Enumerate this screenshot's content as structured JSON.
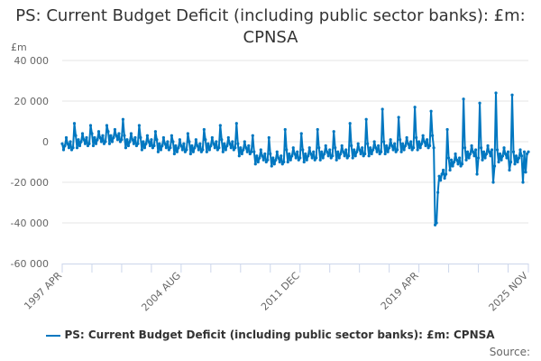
{
  "title": "PS: Current Budget Deficit (including public sector banks): £m: CPNSA",
  "source_label": "Source:",
  "colors": {
    "series": "#0077c0",
    "grid": "#e6e6e6",
    "axis": "#ccd6eb"
  },
  "chart_data": {
    "type": "line",
    "title": "PS: Current Budget Deficit (including public sector banks): £m: CPNSA",
    "ylabel": "£m",
    "ylim": [
      -60000,
      40000
    ],
    "yticks": [
      40000,
      20000,
      0,
      -20000,
      -40000,
      -60000
    ],
    "ytick_labels": [
      "40 000",
      "20 000",
      "0",
      "-20 000",
      "-40 000",
      "-60 000"
    ],
    "x_start": "1997 APR",
    "x_end": "2025 NOV",
    "x_frequency": "monthly",
    "xtick_labels": [
      "1997 APR",
      "2004 AUG",
      "2011 DEC",
      "2019 APR",
      "2025 NOV"
    ],
    "grid": true,
    "legend_position": "bottom",
    "series": [
      {
        "name": "PS: Current Budget Deficit (including public sector banks): £m: CPNSA",
        "values": [
          -1000,
          -4000,
          -2000,
          2000,
          -1000,
          -3000,
          0,
          -4000,
          -3000,
          9000,
          3000,
          -3000,
          1000,
          -2000,
          0,
          4000,
          1000,
          -1000,
          2000,
          -2000,
          -1000,
          8000,
          4000,
          -2000,
          2000,
          -1000,
          1000,
          5000,
          2000,
          0,
          3000,
          -1000,
          0,
          8000,
          5000,
          -1000,
          3000,
          0,
          2000,
          6000,
          3000,
          1000,
          4000,
          0,
          1000,
          11000,
          3000,
          -3000,
          1000,
          -2000,
          0,
          4000,
          1000,
          -1000,
          2000,
          -2000,
          -1000,
          8000,
          2000,
          -4000,
          0,
          -3000,
          -1000,
          3000,
          0,
          -2000,
          1000,
          -3000,
          -2000,
          5000,
          1000,
          -5000,
          -1000,
          -4000,
          -2000,
          2000,
          -1000,
          -3000,
          0,
          -4000,
          -3000,
          3000,
          0,
          -6000,
          -2000,
          -5000,
          -3000,
          1000,
          -2000,
          -4000,
          -1000,
          -5000,
          -4000,
          4000,
          0,
          -6000,
          -2000,
          -5000,
          -3000,
          1000,
          -2000,
          -4000,
          -1000,
          -5000,
          -4000,
          6000,
          1000,
          -5000,
          -1000,
          -4000,
          -2000,
          2000,
          -1000,
          -3000,
          0,
          -4000,
          -3000,
          8000,
          1000,
          -5000,
          -1000,
          -4000,
          -2000,
          2000,
          -1000,
          -3000,
          0,
          -4000,
          -3000,
          9000,
          -1000,
          -7000,
          -3000,
          -6000,
          -4000,
          0,
          -3000,
          -5000,
          -2000,
          -6000,
          -5000,
          3000,
          -5000,
          -11000,
          -7000,
          -10000,
          -8000,
          -4000,
          -7000,
          -9000,
          -6000,
          -10000,
          -9000,
          2000,
          -6000,
          -12000,
          -8000,
          -11000,
          -9000,
          -5000,
          -8000,
          -10000,
          -7000,
          -11000,
          -10000,
          6000,
          -4000,
          -10000,
          -6000,
          -9000,
          -7000,
          -3000,
          -6000,
          -8000,
          -5000,
          -9000,
          -8000,
          4000,
          -4000,
          -10000,
          -6000,
          -9000,
          -7000,
          -3000,
          -6000,
          -8000,
          -5000,
          -9000,
          -8000,
          6000,
          -3000,
          -9000,
          -5000,
          -8000,
          -6000,
          -2000,
          -5000,
          -7000,
          -4000,
          -8000,
          -7000,
          5000,
          -3000,
          -9000,
          -5000,
          -8000,
          -6000,
          -2000,
          -5000,
          -7000,
          -4000,
          -8000,
          -7000,
          9000,
          -2000,
          -8000,
          -4000,
          -7000,
          -5000,
          -1000,
          -4000,
          -6000,
          -3000,
          -7000,
          -6000,
          11000,
          -1000,
          -7000,
          -3000,
          -6000,
          -4000,
          0,
          -3000,
          -5000,
          -2000,
          -6000,
          -5000,
          16000,
          0,
          -6000,
          -2000,
          -5000,
          -3000,
          1000,
          -2000,
          -4000,
          -1000,
          -5000,
          -4000,
          12000,
          1000,
          -5000,
          -1000,
          -4000,
          -2000,
          2000,
          -1000,
          -3000,
          0,
          -4000,
          -3000,
          17000,
          2000,
          -4000,
          0,
          -3000,
          -1000,
          3000,
          0,
          -2000,
          1000,
          -3000,
          -2000,
          15000,
          3000,
          -3000,
          -41000,
          -40000,
          -25000,
          -17000,
          -19000,
          -16000,
          -14000,
          -18000,
          -16000,
          6000,
          -8000,
          -14000,
          -9000,
          -12000,
          -10000,
          -6000,
          -9000,
          -11000,
          -8000,
          -12000,
          -11000,
          21000,
          -3000,
          -9000,
          -5000,
          -8000,
          -6000,
          -2000,
          -5000,
          -7000,
          -4000,
          -16000,
          -8000,
          19000,
          -3000,
          -9000,
          -5000,
          -8000,
          -6000,
          -2000,
          -5000,
          -7000,
          -4000,
          -20000,
          -12000,
          24000,
          -4000,
          -10000,
          -6000,
          -9000,
          -7000,
          -3000,
          -6000,
          -8000,
          -5000,
          -14000,
          -10000,
          23000,
          -5000,
          -11000,
          -7000,
          -10000,
          -8000,
          -4000,
          -7000,
          -20000,
          -5000,
          -15000,
          -6000,
          -5000
        ]
      }
    ]
  }
}
